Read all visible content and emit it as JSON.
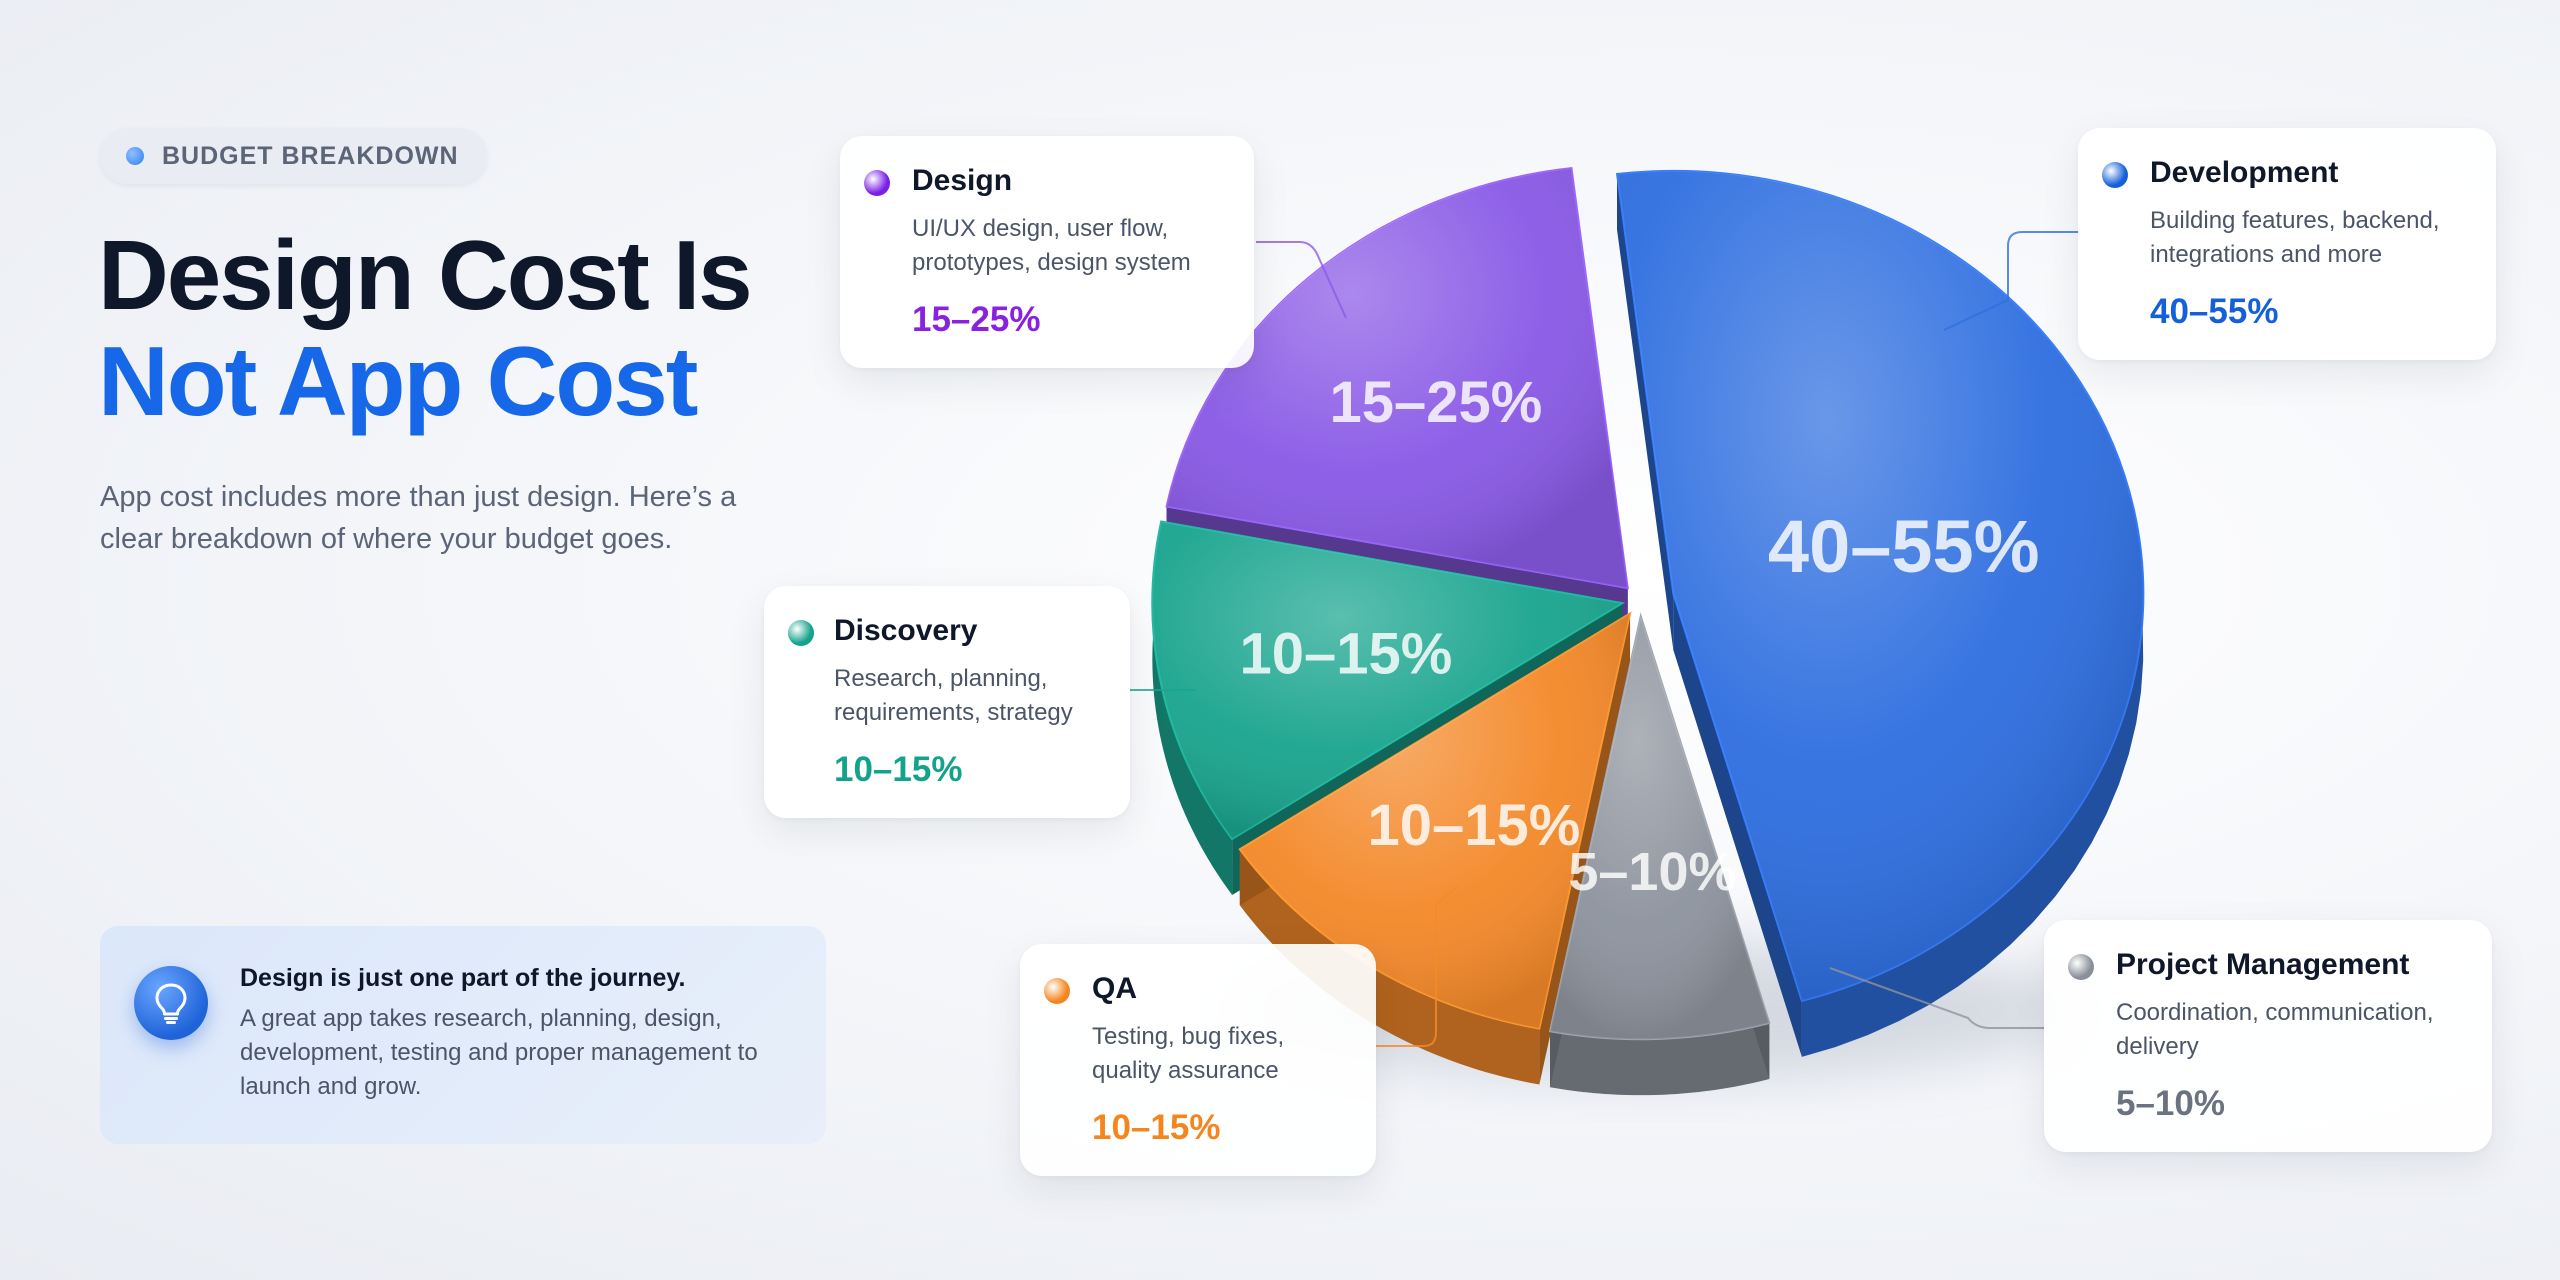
{
  "badge": {
    "label": "BUDGET BREAKDOWN"
  },
  "headline": {
    "line1": "Design Cost Is",
    "line2": "Not App Cost"
  },
  "subtitle": "App cost includes more than just design. Here’s a clear breakdown of where your budget goes.",
  "note": {
    "icon": "lightbulb-icon",
    "heading": "Design is just one part of the journey.",
    "body": "A great app takes research, planning, design, development, testing and proper management to launch and grow."
  },
  "chart_data": {
    "type": "pie",
    "style": "3d-exploded",
    "legend": "callout cards",
    "slices": [
      {
        "name": "Development",
        "range": "40–55%",
        "min": 40,
        "max": 55,
        "mid": 47.5,
        "color": "#2f6fe0",
        "description": "Building features, backend, integrations and more"
      },
      {
        "name": "Project Management",
        "range": "5–10%",
        "min": 5,
        "max": 10,
        "mid": 7.5,
        "color": "#8e949e",
        "description": "Coordination, communication, delivery"
      },
      {
        "name": "QA",
        "range": "10–15%",
        "min": 10,
        "max": 15,
        "mid": 12.5,
        "color": "#f4892a",
        "description": "Testing, bug fixes, quality assurance"
      },
      {
        "name": "Discovery",
        "range": "10–15%",
        "min": 10,
        "max": 15,
        "mid": 12.5,
        "color": "#1aa58f",
        "description": "Research, planning, requirements, strategy"
      },
      {
        "name": "Design",
        "range": "15–25%",
        "min": 15,
        "max": 25,
        "mid": 20,
        "color": "#8a5ae6",
        "description": "UI/UX design, user flow, prototypes, design system"
      }
    ]
  },
  "cards": [
    {
      "name": "Design",
      "title": "Design",
      "desc": "UI/UX design, user flow, prototypes, design system",
      "value": "15–25%",
      "dot": "#7c1fe6",
      "valueColor": "#8a20e0"
    },
    {
      "name": "Development",
      "title": "Development",
      "desc": "Building features, backend, integrations and more",
      "value": "40–55%",
      "dot": "#1560d8",
      "valueColor": "#1560d8"
    },
    {
      "name": "Discovery",
      "title": "Discovery",
      "desc": "Research, planning, requirements, strategy",
      "value": "10–15%",
      "dot": "#13a38c",
      "valueColor": "#13a38c"
    },
    {
      "name": "QA",
      "title": "QA",
      "desc": "Testing, bug fixes, quality assurance",
      "value": "10–15%",
      "dot": "#f5861f",
      "valueColor": "#f5861f"
    },
    {
      "name": "Project Management",
      "title": "Project Management",
      "desc": "Coordination, communication, delivery",
      "value": "5–10%",
      "dot": "#8a9099",
      "valueColor": "#6b7280"
    }
  ]
}
